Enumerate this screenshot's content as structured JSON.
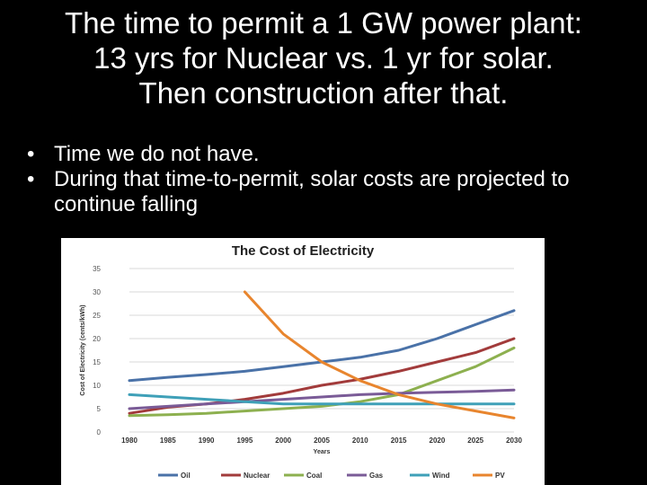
{
  "slide": {
    "title_lines": [
      "The time to permit a 1 GW power plant:",
      "13 yrs for Nuclear vs. 1 yr for solar.",
      "Then construction after that."
    ],
    "bullets": [
      "Time we do not have.",
      "During that time-to-permit, solar costs are projected to continue falling"
    ]
  },
  "chart_data": {
    "type": "line",
    "title": "The Cost of Electricity",
    "xlabel": "Years",
    "ylabel": "Cost of Electricity (cents/kWh)",
    "x": [
      1980,
      1985,
      1990,
      1995,
      2000,
      2005,
      2010,
      2015,
      2020,
      2025,
      2030
    ],
    "xlim": [
      1980,
      2030
    ],
    "ylim": [
      0,
      35
    ],
    "y_ticks": [
      0,
      5,
      10,
      15,
      20,
      25,
      30,
      35
    ],
    "grid": "horizontal",
    "legend_position": "bottom",
    "series": [
      {
        "name": "Oil",
        "color": "#4a72a8",
        "values": [
          11,
          11.7,
          12.3,
          13,
          14,
          15,
          16,
          17.5,
          20,
          23,
          26
        ]
      },
      {
        "name": "Nuclear",
        "color": "#a23b3b",
        "values": [
          4,
          5.3,
          6,
          7,
          8.3,
          10,
          11.3,
          13,
          15,
          17,
          20
        ]
      },
      {
        "name": "Coal",
        "color": "#8db04f",
        "values": [
          3.5,
          3.7,
          4,
          4.5,
          5,
          5.5,
          6.5,
          8,
          11,
          14,
          18
        ]
      },
      {
        "name": "Gas",
        "color": "#7a5b97",
        "values": [
          5,
          5.5,
          6,
          6.5,
          7,
          7.5,
          8,
          8.3,
          8.5,
          8.7,
          9
        ]
      },
      {
        "name": "Wind",
        "color": "#3fa0b8",
        "values": [
          8,
          7.5,
          7,
          6.5,
          6,
          6,
          6,
          6,
          6,
          6,
          6
        ]
      },
      {
        "name": "PV",
        "color": "#e8852e",
        "values": [
          null,
          null,
          null,
          30,
          21,
          15,
          11,
          8,
          6,
          4.5,
          3
        ]
      }
    ]
  }
}
